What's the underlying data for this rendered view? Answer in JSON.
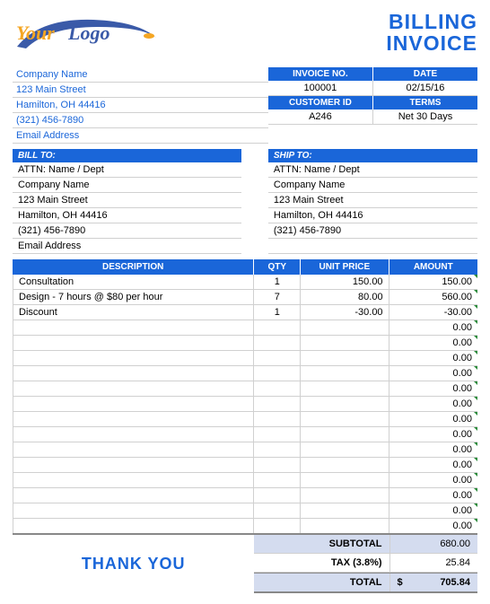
{
  "logo": {
    "your": "Your",
    "logo": "Logo"
  },
  "title": {
    "line1": "BILLING",
    "line2": "INVOICE"
  },
  "sender": {
    "company": "Company Name",
    "street": "123 Main Street",
    "city": "Hamilton, OH  44416",
    "phone": "(321) 456-7890",
    "email": "Email Address"
  },
  "meta": {
    "headers": {
      "invoice_no": "INVOICE NO.",
      "date": "DATE",
      "customer_id": "CUSTOMER ID",
      "terms": "TERMS"
    },
    "invoice_no": "100001",
    "date": "02/15/16",
    "customer_id": "A246",
    "terms": "Net 30 Days"
  },
  "bill_to": {
    "header": "BILL TO:",
    "attn": "ATTN: Name / Dept",
    "company": "Company Name",
    "street": "123 Main Street",
    "city": "Hamilton, OH  44416",
    "phone": "(321) 456-7890",
    "email": "Email Address"
  },
  "ship_to": {
    "header": "SHIP TO:",
    "attn": "ATTN: Name / Dept",
    "company": "Company Name",
    "street": "123 Main Street",
    "city": "Hamilton, OH  44416",
    "phone": "(321) 456-7890"
  },
  "items_header": {
    "description": "DESCRIPTION",
    "qty": "QTY",
    "unit_price": "UNIT PRICE",
    "amount": "AMOUNT"
  },
  "items": [
    {
      "description": "Consultation",
      "qty": "1",
      "unit_price": "150.00",
      "amount": "150.00"
    },
    {
      "description": "Design - 7 hours @ $80 per hour",
      "qty": "7",
      "unit_price": "80.00",
      "amount": "560.00"
    },
    {
      "description": "Discount",
      "qty": "1",
      "unit_price": "-30.00",
      "amount": "-30.00"
    }
  ],
  "empty_amount": "0.00",
  "empty_row_count": 14,
  "totals": {
    "subtotal_label": "SUBTOTAL",
    "subtotal": "680.00",
    "tax_label": "TAX (3.8%)",
    "tax": "25.84",
    "total_label": "TOTAL",
    "total_currency": "$",
    "total": "705.84"
  },
  "thank_you": "THANK YOU",
  "colors": {
    "primary": "#1a66d9",
    "accent_bg": "#d4dcef",
    "logo_orange": "#f5a623",
    "logo_blue": "#3a5aa8",
    "marker_green": "#2a8a3a",
    "border": "#d0d0d0"
  }
}
